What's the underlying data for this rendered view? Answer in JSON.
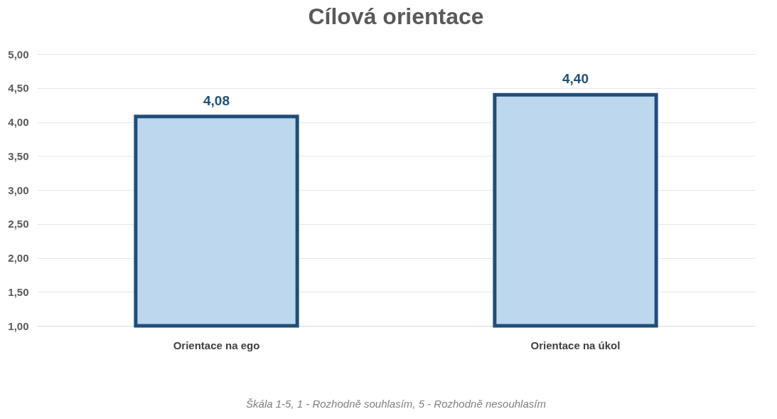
{
  "chart_data": {
    "type": "bar",
    "title": "Cílová orientace",
    "categories": [
      "Orientace na ego",
      "Orientace na úkol"
    ],
    "values": [
      4.08,
      4.4
    ],
    "value_labels": [
      "4,08",
      "4,40"
    ],
    "color": "#bdd7ee",
    "ylim": [
      1,
      5
    ],
    "yticks": [
      {
        "value": 1,
        "label": "1,00"
      },
      {
        "value": 1.5,
        "label": "1,50"
      },
      {
        "value": 2,
        "label": "2,00"
      },
      {
        "value": 2.5,
        "label": "2,50"
      },
      {
        "value": 3,
        "label": "3,00"
      },
      {
        "value": 3.5,
        "label": "3,50"
      },
      {
        "value": 4,
        "label": "4,00"
      },
      {
        "value": 4.5,
        "label": "4,50"
      },
      {
        "value": 5,
        "label": "5,00"
      }
    ],
    "grid": "y",
    "annotations": [
      "Škála 1-5, 1 - Rozhodně souhlasím, 5 - Rozhodně nesouhlasím"
    ]
  }
}
